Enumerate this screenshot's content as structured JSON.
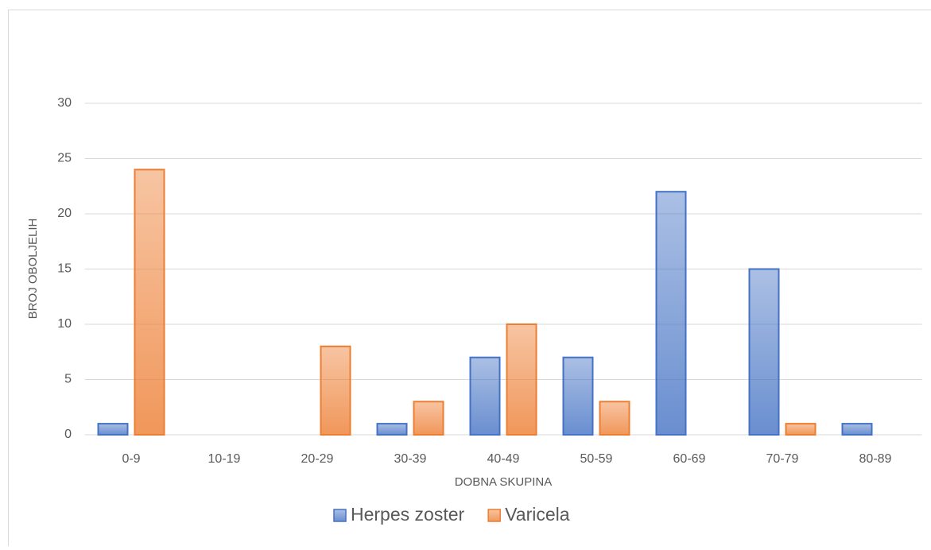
{
  "chart_data": {
    "type": "bar",
    "x_label": "DOBNA SKUPINA",
    "y_label": "BROJ OBOLJELIH",
    "categories": [
      "0-9",
      "10-19",
      "20-29",
      "30-39",
      "40-49",
      "50-59",
      "60-69",
      "70-79",
      "80-89"
    ],
    "series": [
      {
        "name": "Herpes zoster",
        "color": "#4472c4",
        "values": [
          1,
          0,
          0,
          1,
          7,
          7,
          22,
          15,
          1
        ]
      },
      {
        "name": "Varicela",
        "color": "#ed7d31",
        "values": [
          24,
          0,
          8,
          3,
          10,
          3,
          0,
          1,
          0
        ]
      }
    ],
    "ylim": [
      0,
      30
    ],
    "yticks": [
      0,
      5,
      10,
      15,
      20,
      25,
      30
    ],
    "grid": true,
    "legend": "bottom"
  }
}
